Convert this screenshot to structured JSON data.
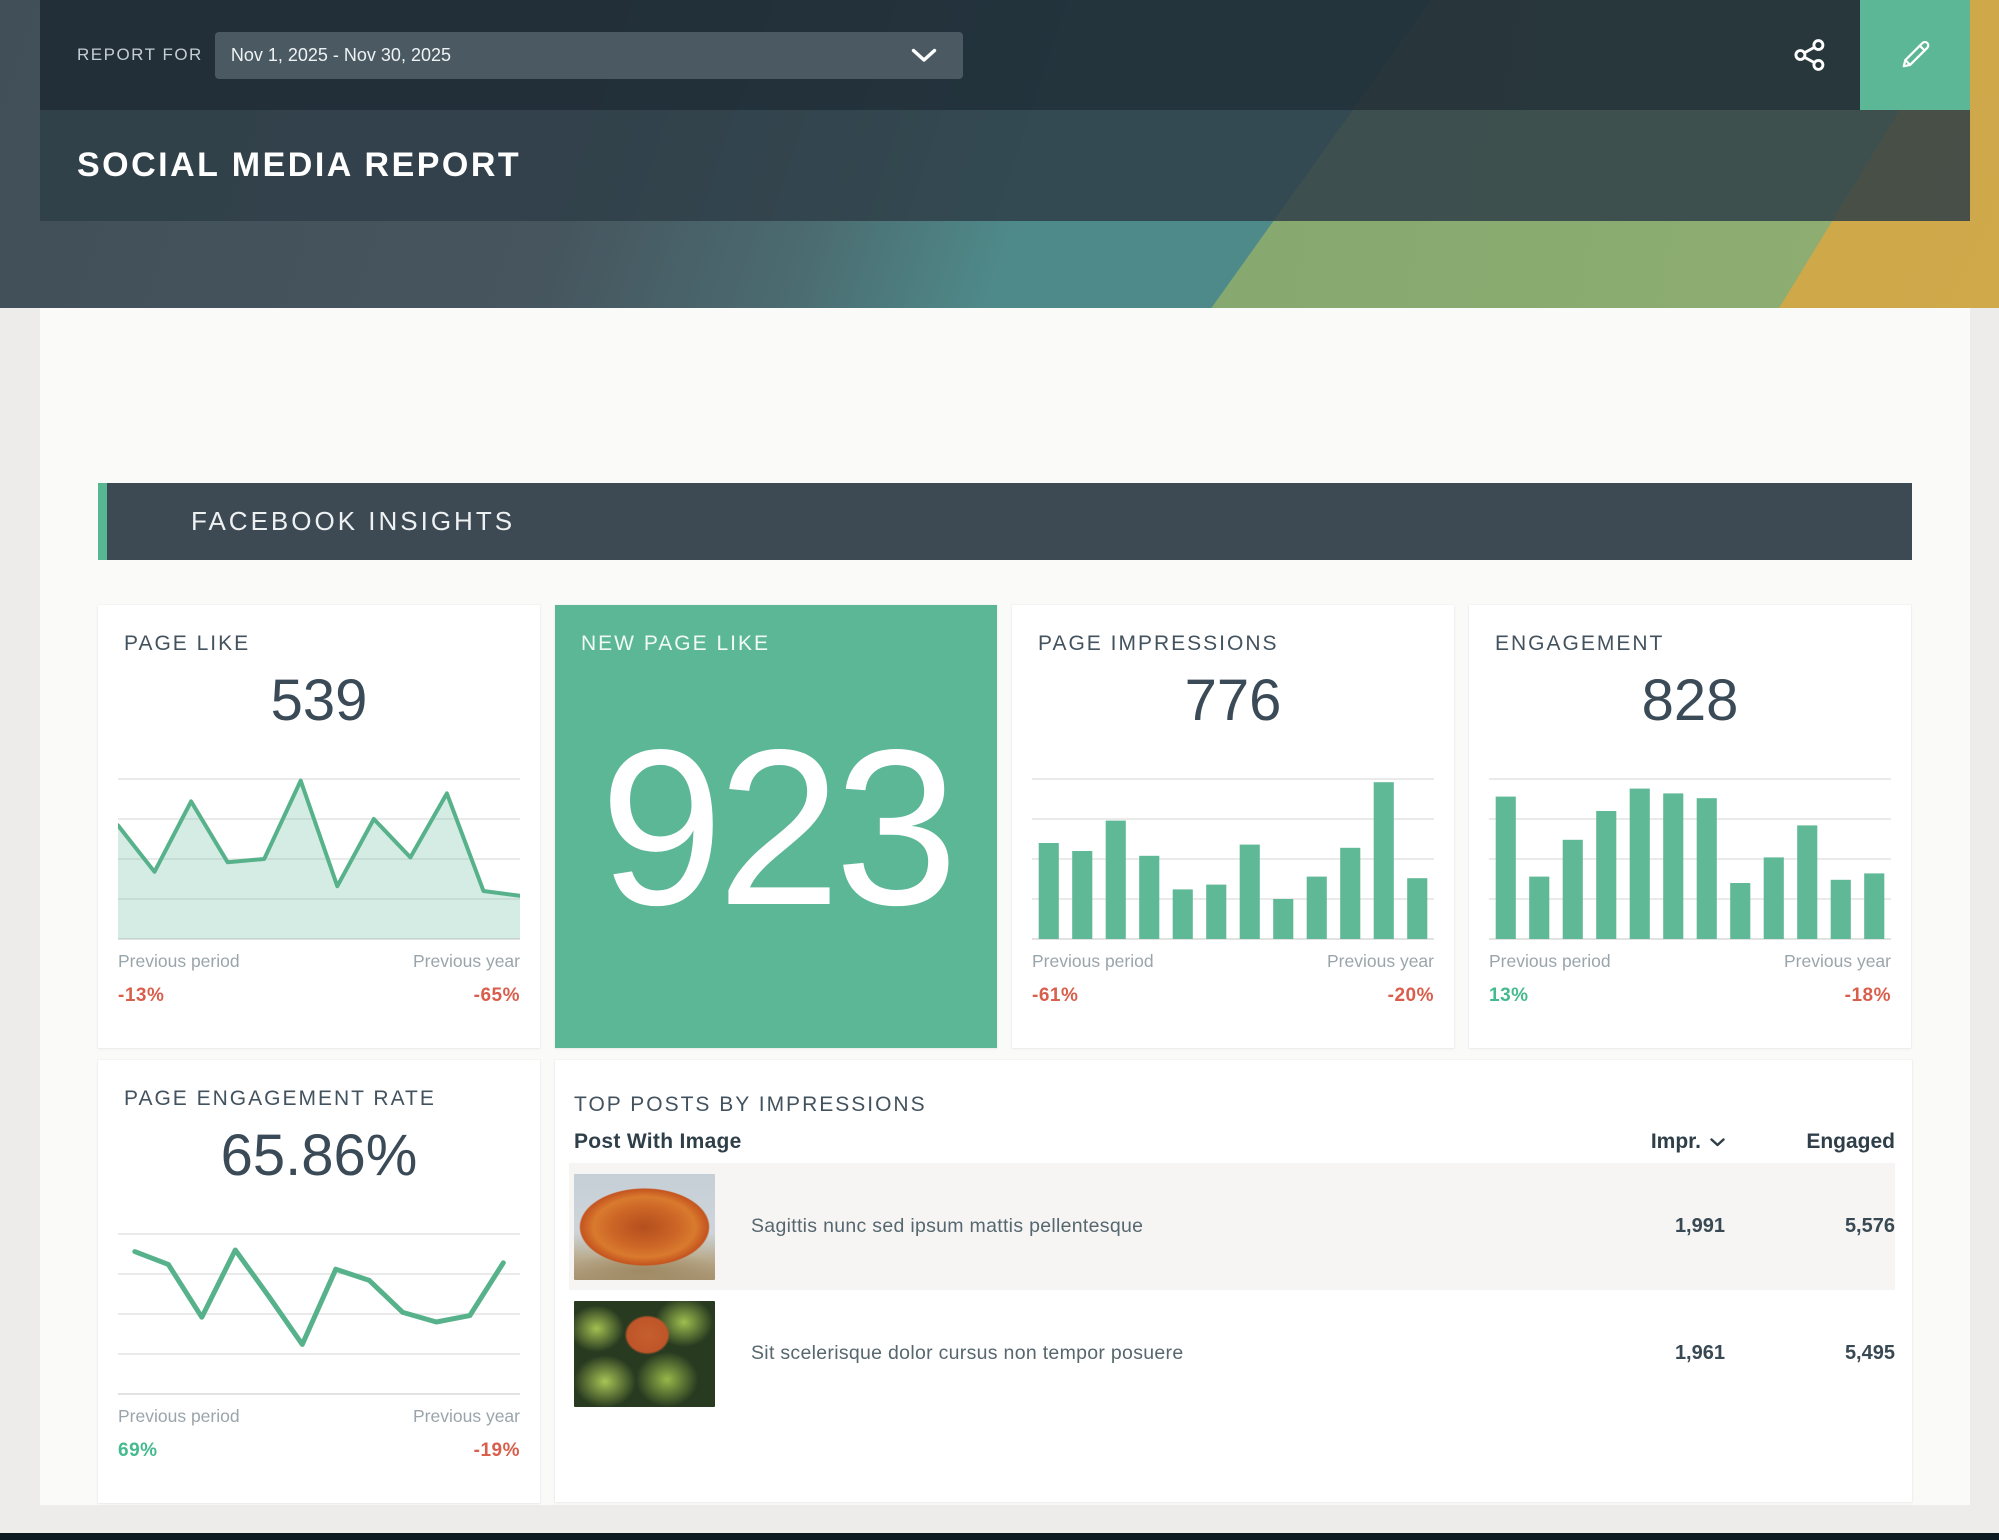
{
  "header": {
    "report_for_label": "REPORT FOR",
    "date_range": "Nov 1, 2025 - Nov 30, 2025",
    "title": "SOCIAL MEDIA REPORT"
  },
  "icons": {
    "share": "share-icon",
    "edit": "pencil-icon",
    "dropdown": "chevron-down-icon",
    "sort": "chevron-down-icon"
  },
  "colors": {
    "accent_green": "#57b793",
    "green_card": "#5cb797",
    "header_dark": "#2c3a44",
    "section_bar": "#3d4a54",
    "negative": "#d95f4c",
    "positive": "#45ba8e",
    "chart_green": "#57b28c"
  },
  "section": {
    "title": "FACEBOOK INSIGHTS"
  },
  "labels": {
    "previous_period": "Previous period",
    "previous_year": "Previous year"
  },
  "kpis": {
    "page_like": {
      "title": "PAGE LIKE",
      "value": "539",
      "previous_period": "-13%",
      "previous_year": "-65%"
    },
    "new_page_like": {
      "title": "NEW PAGE LIKE",
      "value": "923"
    },
    "page_impressions": {
      "title": "PAGE IMPRESSIONS",
      "value": "776",
      "previous_period": "-61%",
      "previous_year": "-20%"
    },
    "engagement": {
      "title": "ENGAGEMENT",
      "value": "828",
      "previous_period": "13%",
      "previous_year": "-18%"
    },
    "page_engagement_rate": {
      "title": "PAGE ENGAGEMENT RATE",
      "value": "65.86%",
      "previous_period": "69%",
      "previous_year": "-19%"
    }
  },
  "chart_data": [
    {
      "id": "page_like",
      "type": "area",
      "title": "PAGE LIKE daily sparkline",
      "x": [
        1,
        2,
        3,
        4,
        5,
        6,
        7,
        8,
        9,
        10,
        11,
        12
      ],
      "values": [
        71,
        42,
        86,
        48,
        50,
        99,
        33,
        75,
        51,
        91,
        30,
        27
      ],
      "xlabel": "",
      "ylabel": "",
      "ylim": [
        0,
        100
      ],
      "grid": true,
      "legend": "none",
      "note": "unlabeled sparkline; values estimated 0-100 relative to top gridline"
    },
    {
      "id": "page_impressions",
      "type": "bar",
      "title": "PAGE IMPRESSIONS daily sparkline",
      "x": [
        1,
        2,
        3,
        4,
        5,
        6,
        7,
        8,
        9,
        10,
        11,
        12
      ],
      "values": [
        60,
        55,
        74,
        52,
        31,
        34,
        59,
        25,
        39,
        57,
        98,
        38
      ],
      "xlabel": "",
      "ylabel": "",
      "ylim": [
        0,
        100
      ],
      "grid": true,
      "legend": "none",
      "note": "unlabeled sparkline; values estimated 0-100 relative to top gridline"
    },
    {
      "id": "engagement",
      "type": "bar",
      "title": "ENGAGEMENT daily sparkline",
      "x": [
        1,
        2,
        3,
        4,
        5,
        6,
        7,
        8,
        9,
        10,
        11,
        12
      ],
      "values": [
        89,
        39,
        62,
        80,
        94,
        91,
        88,
        35,
        51,
        71,
        37,
        41
      ],
      "xlabel": "",
      "ylabel": "",
      "ylim": [
        0,
        100
      ],
      "grid": true,
      "legend": "none",
      "note": "unlabeled sparkline; values estimated 0-100 relative to top gridline"
    },
    {
      "id": "engagement_rate",
      "type": "line",
      "title": "PAGE ENGAGEMENT RATE daily sparkline",
      "x": [
        1,
        2,
        3,
        4,
        5,
        6,
        7,
        8,
        9,
        10,
        11,
        12
      ],
      "values": [
        89,
        81,
        48,
        90,
        61,
        31,
        78,
        71,
        51,
        45,
        49,
        82
      ],
      "xlabel": "",
      "ylabel": "",
      "ylim": [
        0,
        100
      ],
      "grid": true,
      "legend": "none",
      "note": "unlabeled sparkline; values estimated 0-100 relative to top gridline"
    }
  ],
  "top_posts": {
    "title": "TOP POSTS BY IMPRESSIONS",
    "columns": {
      "post": "Post With Image",
      "impressions": "Impr.",
      "engaged": "Engaged"
    },
    "sorted_by": "Impr.",
    "rows": [
      {
        "text": "Sagittis nunc sed ipsum mattis pellentesque",
        "impressions": "1,991",
        "engaged": "5,576"
      },
      {
        "text": "Sit scelerisque dolor cursus non tempor posuere",
        "impressions": "1,961",
        "engaged": "5,495"
      }
    ]
  }
}
